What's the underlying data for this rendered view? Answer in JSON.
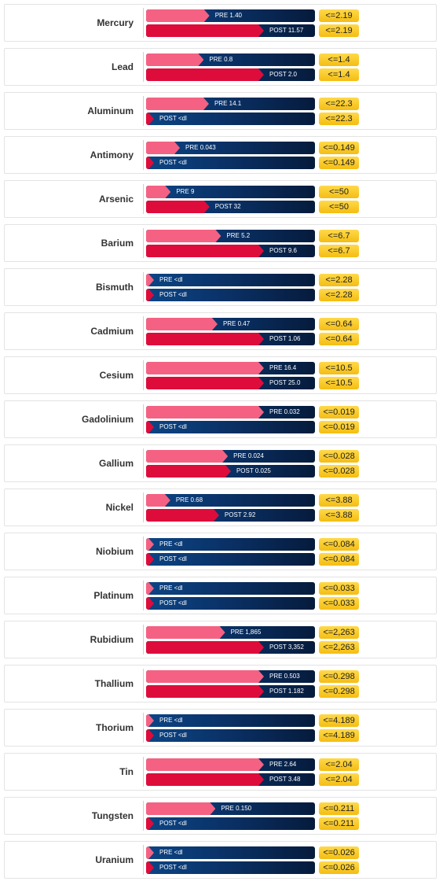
{
  "chart_data": {
    "type": "bar",
    "orientation": "horizontal",
    "scale_max": 50,
    "colors": {
      "pre": "#f56182",
      "post": "#de0c3b",
      "track": "#0a3268",
      "limit": "#f4bd12"
    },
    "rows": [
      {
        "element": "Mercury",
        "pre_label": "PRE 1.40",
        "pre": 1.4,
        "post_label": "POST 11.57",
        "post": 11.57,
        "limit": "<=2.19"
      },
      {
        "element": "Lead",
        "pre_label": "PRE 0.8",
        "pre": 0.8,
        "post_label": "POST 2.0",
        "post": 2.0,
        "limit": "<=1.4"
      },
      {
        "element": "Aluminum",
        "pre_label": "PRE 14.1",
        "pre": 14.1,
        "post_label": "POST <dl",
        "post": 0,
        "limit": "<=22.3"
      },
      {
        "element": "Antimony",
        "pre_label": "PRE 0.043",
        "pre": 0.043,
        "post_label": "POST <dl",
        "post": 0,
        "limit": "<=0.149"
      },
      {
        "element": "Arsenic",
        "pre_label": "PRE 9",
        "pre": 9,
        "post_label": "POST 32",
        "post": 32,
        "limit": "<=50"
      },
      {
        "element": "Barium",
        "pre_label": "PRE 5.2",
        "pre": 5.2,
        "post_label": "POST 9.6",
        "post": 9.6,
        "limit": "<=6.7"
      },
      {
        "element": "Bismuth",
        "pre_label": "PRE <dl",
        "pre": 0,
        "post_label": "POST <dl",
        "post": 0,
        "limit": "<=2.28"
      },
      {
        "element": "Cadmium",
        "pre_label": "PRE 0.47",
        "pre": 0.47,
        "post_label": "POST 1.06",
        "post": 1.06,
        "limit": "<=0.64"
      },
      {
        "element": "Cesium",
        "pre_label": "PRE 16.4",
        "pre": 16.4,
        "post_label": "POST 25.0",
        "post": 25.0,
        "limit": "<=10.5"
      },
      {
        "element": "Gadolinium",
        "pre_label": "PRE 0.032",
        "pre": 0.032,
        "post_label": "POST <dl",
        "post": 0,
        "limit": "<=0.019"
      },
      {
        "element": "Gallium",
        "pre_label": "PRE 0.024",
        "pre": 0.024,
        "post_label": "POST 0.025",
        "post": 0.025,
        "limit": "<=0.028"
      },
      {
        "element": "Nickel",
        "pre_label": "PRE 0.68",
        "pre": 0.68,
        "post_label": "POST 2.92",
        "post": 2.92,
        "limit": "<=3.88"
      },
      {
        "element": "Niobium",
        "pre_label": "PRE <dl",
        "pre": 0,
        "post_label": "POST <dl",
        "post": 0,
        "limit": "<=0.084"
      },
      {
        "element": "Platinum",
        "pre_label": "PRE <dl",
        "pre": 0,
        "post_label": "POST <dl",
        "post": 0,
        "limit": "<=0.033"
      },
      {
        "element": "Rubidium",
        "pre_label": "PRE 1,865",
        "pre": 1865,
        "post_label": "POST 3,352",
        "post": 3352,
        "limit": "<=2,263"
      },
      {
        "element": "Thallium",
        "pre_label": "PRE 0.503",
        "pre": 0.503,
        "post_label": "POST 1.182",
        "post": 1.182,
        "limit": "<=0.298"
      },
      {
        "element": "Thorium",
        "pre_label": "PRE <dl",
        "pre": 0,
        "post_label": "POST <dl",
        "post": 0,
        "limit": "<=4.189"
      },
      {
        "element": "Tin",
        "pre_label": "PRE 2.64",
        "pre": 2.64,
        "post_label": "POST 3.48",
        "post": 3.48,
        "limit": "<=2.04"
      },
      {
        "element": "Tungsten",
        "pre_label": "PRE 0.150",
        "pre": 0.15,
        "post_label": "POST <dl",
        "post": 0,
        "limit": "<=0.211"
      },
      {
        "element": "Uranium",
        "pre_label": "PRE <dl",
        "pre": 0,
        "post_label": "POST <dl",
        "post": 0,
        "limit": "<=0.026"
      }
    ]
  }
}
